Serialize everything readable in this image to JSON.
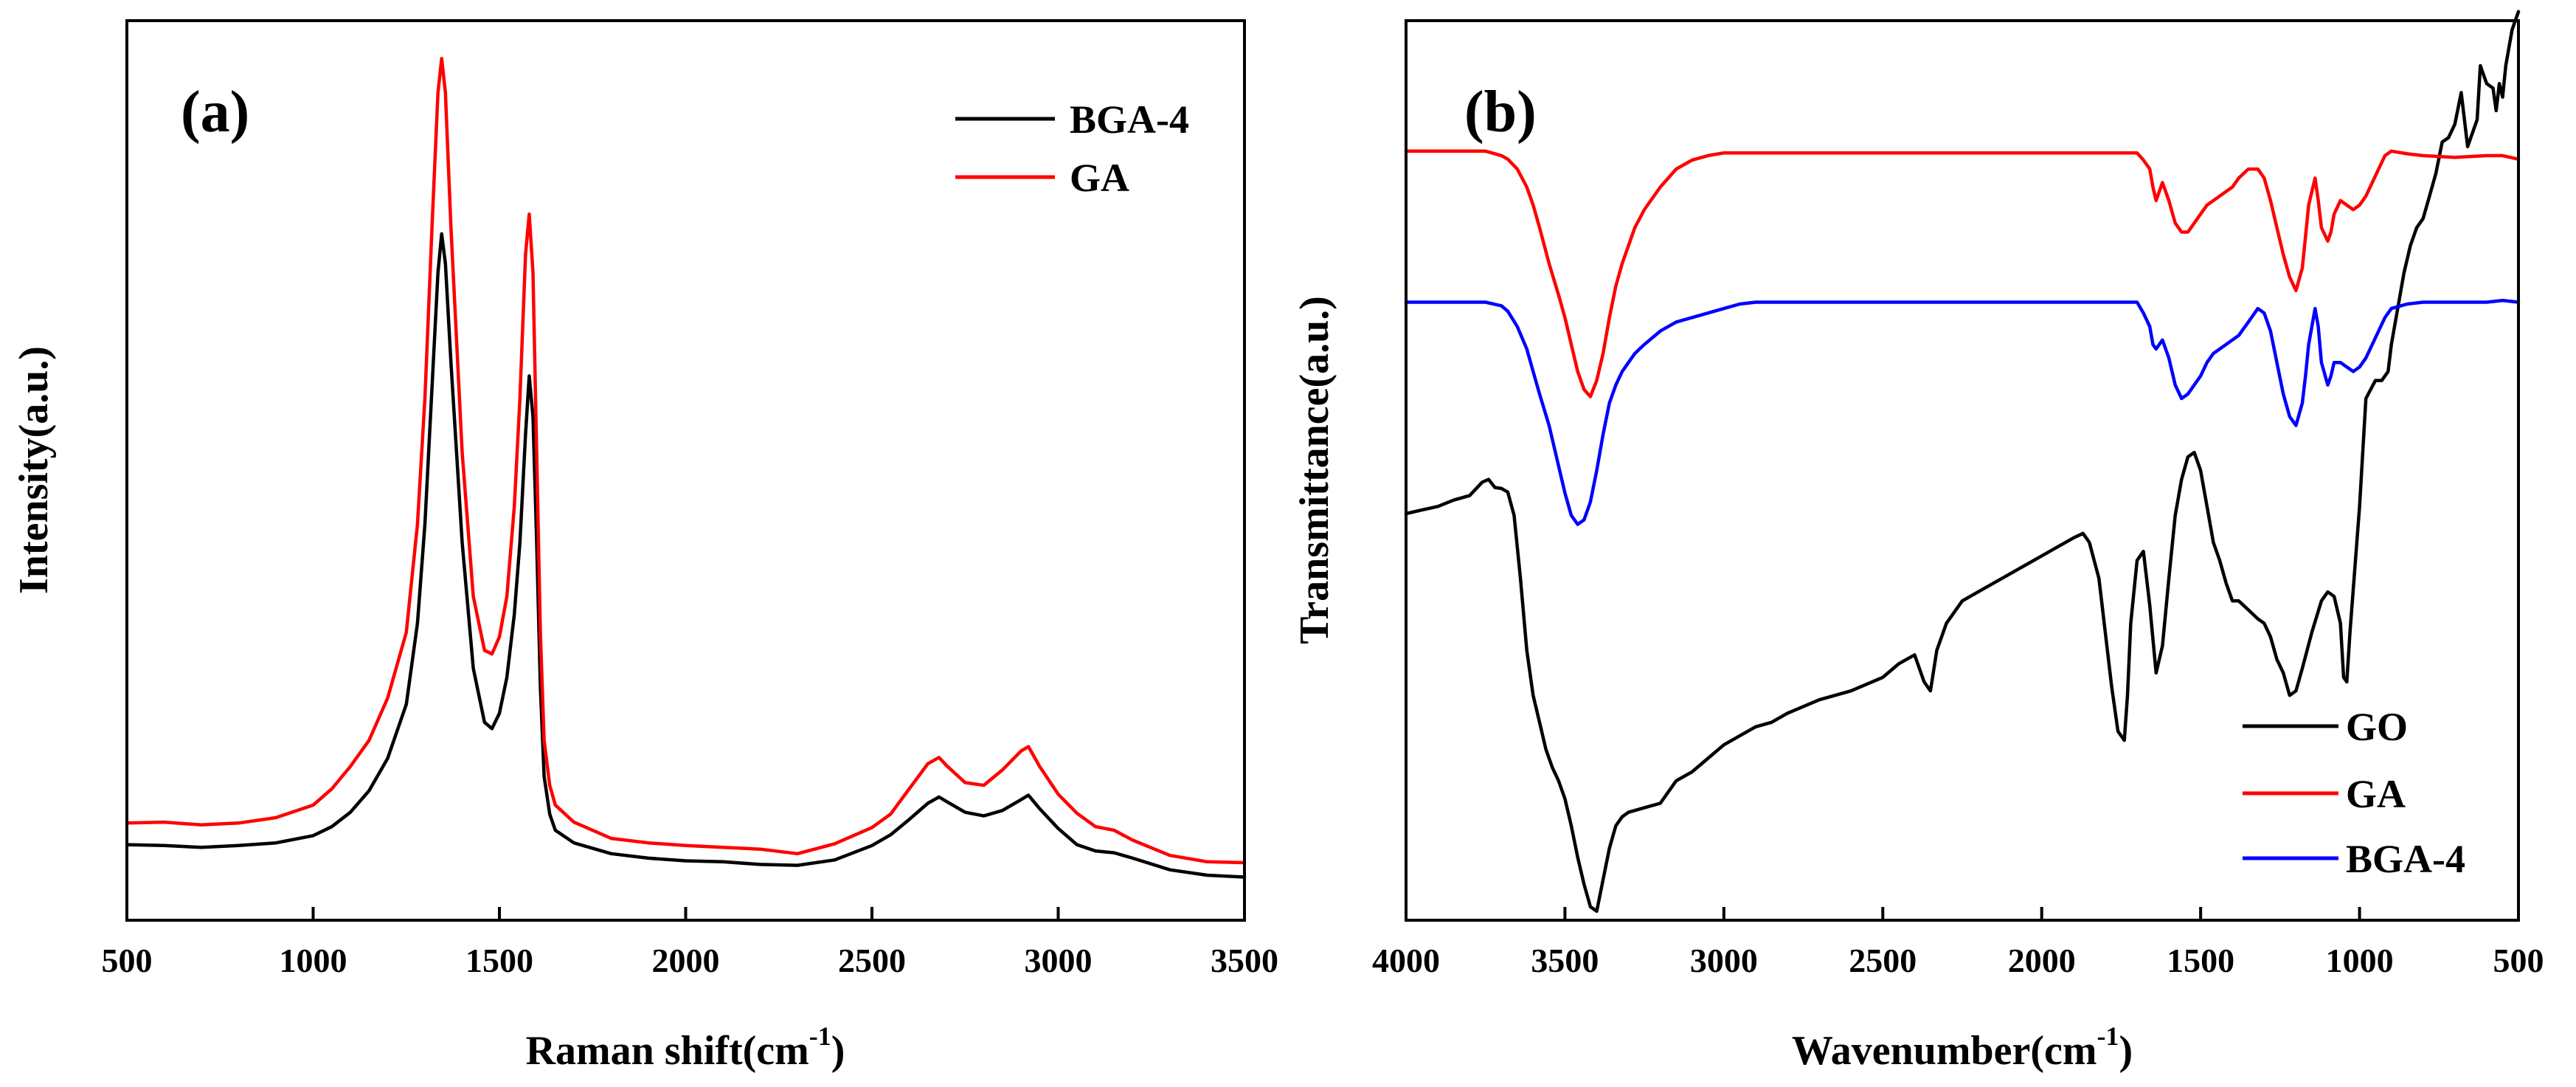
{
  "chart_data": [
    {
      "type": "line",
      "panel_label": "(a)",
      "title": "",
      "xlabel": "Raman shift(cm",
      "xlabel_sup": "-1",
      "xlabel_close": ")",
      "ylabel": "Intensity(a.u.)",
      "xlim": [
        500,
        3500
      ],
      "ylim": [
        0,
        100
      ],
      "xticks": [
        500,
        1000,
        1500,
        2000,
        2500,
        3000,
        3500
      ],
      "yticks_shown": false,
      "legend_position": "top-right",
      "series": [
        {
          "name": "BGA-4",
          "color": "#000000",
          "x": [
            500,
            600,
            700,
            800,
            900,
            1000,
            1050,
            1100,
            1150,
            1200,
            1250,
            1280,
            1300,
            1320,
            1335,
            1345,
            1355,
            1370,
            1400,
            1430,
            1460,
            1480,
            1500,
            1520,
            1540,
            1555,
            1570,
            1580,
            1590,
            1600,
            1610,
            1620,
            1635,
            1650,
            1700,
            1800,
            1900,
            2000,
            2100,
            2200,
            2300,
            2400,
            2500,
            2550,
            2600,
            2650,
            2680,
            2700,
            2750,
            2800,
            2850,
            2900,
            2920,
            2950,
            3000,
            3050,
            3100,
            3150,
            3200,
            3300,
            3400,
            3500
          ],
          "values": [
            8.4,
            8.3,
            8.1,
            8.3,
            8.6,
            9.4,
            10.4,
            12.0,
            14.4,
            18.0,
            24.0,
            33.0,
            44.0,
            60.0,
            72.0,
            76.3,
            73.0,
            62.0,
            42.0,
            28.0,
            22.0,
            21.3,
            23.0,
            27.0,
            34.0,
            42.0,
            54.0,
            60.5,
            56.0,
            42.0,
            26.0,
            16.0,
            11.8,
            10.0,
            8.6,
            7.4,
            6.9,
            6.6,
            6.5,
            6.2,
            6.1,
            6.7,
            8.3,
            9.5,
            11.2,
            13.0,
            13.7,
            13.2,
            12.0,
            11.6,
            12.2,
            13.4,
            13.9,
            12.4,
            10.2,
            8.4,
            7.7,
            7.5,
            6.9,
            5.6,
            5.0,
            4.8
          ]
        },
        {
          "name": "GA",
          "color": "#ff0000",
          "x": [
            500,
            600,
            700,
            800,
            900,
            1000,
            1050,
            1100,
            1150,
            1200,
            1250,
            1280,
            1300,
            1320,
            1335,
            1345,
            1355,
            1370,
            1400,
            1430,
            1460,
            1480,
            1500,
            1520,
            1540,
            1555,
            1570,
            1580,
            1590,
            1600,
            1610,
            1620,
            1635,
            1650,
            1700,
            1800,
            1900,
            2000,
            2100,
            2200,
            2300,
            2400,
            2500,
            2550,
            2600,
            2650,
            2680,
            2700,
            2750,
            2800,
            2850,
            2900,
            2920,
            2950,
            3000,
            3050,
            3100,
            3150,
            3200,
            3300,
            3400,
            3500
          ],
          "values": [
            10.8,
            10.9,
            10.6,
            10.8,
            11.4,
            12.8,
            14.6,
            17.1,
            20.0,
            24.7,
            32.0,
            44.0,
            58.0,
            78.0,
            92.0,
            95.8,
            92.0,
            77.0,
            52.0,
            36.0,
            30.0,
            29.6,
            31.5,
            36.0,
            46.0,
            58.0,
            74.0,
            78.5,
            72.0,
            52.0,
            32.0,
            20.0,
            15.0,
            12.8,
            10.9,
            9.1,
            8.6,
            8.3,
            8.1,
            7.9,
            7.4,
            8.5,
            10.3,
            11.8,
            14.6,
            17.4,
            18.1,
            17.2,
            15.3,
            15.0,
            16.7,
            18.8,
            19.3,
            17.1,
            14.0,
            11.9,
            10.4,
            10.0,
            8.9,
            7.2,
            6.5,
            6.4
          ]
        }
      ]
    },
    {
      "type": "line",
      "panel_label": "(b)",
      "title": "",
      "xlabel": "Wavenumber(cm",
      "xlabel_sup": "-1",
      "xlabel_close": ")",
      "ylabel": "Transmittance(a.u.)",
      "xlim": [
        4000,
        500
      ],
      "ylim": [
        0,
        100
      ],
      "x_reversed": true,
      "xticks": [
        4000,
        3500,
        3000,
        2500,
        2000,
        1500,
        1000,
        500
      ],
      "yticks_shown": false,
      "legend_position": "bottom-right",
      "series": [
        {
          "name": "GO",
          "color": "#000000",
          "x": [
            4000,
            3950,
            3900,
            3850,
            3800,
            3760,
            3740,
            3720,
            3700,
            3680,
            3660,
            3640,
            3620,
            3600,
            3580,
            3560,
            3540,
            3520,
            3500,
            3480,
            3460,
            3440,
            3420,
            3400,
            3380,
            3360,
            3340,
            3320,
            3300,
            3250,
            3200,
            3150,
            3100,
            3050,
            3000,
            2950,
            2900,
            2850,
            2800,
            2700,
            2600,
            2500,
            2450,
            2400,
            2370,
            2350,
            2330,
            2300,
            2250,
            2200,
            2100,
            2000,
            1900,
            1870,
            1850,
            1820,
            1800,
            1780,
            1760,
            1740,
            1730,
            1720,
            1700,
            1680,
            1660,
            1640,
            1620,
            1600,
            1580,
            1560,
            1540,
            1520,
            1510,
            1500,
            1480,
            1460,
            1440,
            1420,
            1400,
            1380,
            1350,
            1320,
            1300,
            1280,
            1260,
            1240,
            1220,
            1200,
            1180,
            1150,
            1120,
            1100,
            1080,
            1060,
            1050,
            1040,
            1030,
            1000,
            980,
            950,
            930,
            910,
            900,
            880,
            860,
            840,
            820,
            800,
            780,
            760,
            740,
            720,
            700,
            680,
            660,
            640,
            630,
            620,
            600,
            580,
            570,
            560,
            550,
            540,
            520,
            500
          ],
          "values": [
            45.2,
            45.6,
            46.0,
            46.7,
            47.2,
            48.7,
            49.0,
            48.1,
            48.0,
            47.6,
            45.0,
            38.0,
            30.0,
            25.0,
            22.0,
            19.0,
            17.0,
            15.5,
            13.5,
            10.5,
            7.0,
            4.0,
            1.5,
            1.0,
            4.5,
            8.0,
            10.5,
            11.5,
            12.0,
            12.5,
            13.0,
            15.5,
            16.5,
            18.0,
            19.5,
            20.5,
            21.5,
            22.0,
            23.0,
            24.5,
            25.5,
            27.0,
            28.5,
            29.5,
            26.5,
            25.5,
            30.0,
            33.0,
            35.5,
            36.5,
            38.5,
            40.5,
            42.5,
            43.0,
            42.0,
            38.0,
            32.0,
            26.0,
            21.0,
            20.0,
            25.0,
            33.0,
            40.0,
            41.0,
            35.0,
            27.5,
            30.5,
            38.0,
            45.0,
            49.0,
            51.5,
            52.0,
            51.0,
            50.0,
            46.0,
            42.0,
            40.0,
            37.5,
            35.5,
            35.5,
            34.5,
            33.5,
            33.0,
            31.5,
            29.0,
            27.5,
            25.0,
            25.5,
            28.0,
            32.0,
            35.5,
            36.5,
            36.0,
            33.0,
            27.0,
            26.5,
            32.0,
            46.0,
            58.0,
            60.0,
            60.0,
            61.0,
            64.0,
            68.0,
            72.0,
            75.0,
            77.0,
            78.0,
            80.5,
            83.0,
            86.5,
            87.0,
            88.5,
            92.0,
            86.0,
            88.0,
            89.0,
            95.0,
            93.0,
            92.5,
            90.0,
            93.0,
            91.5,
            95.0,
            99.0,
            101.0
          ]
        },
        {
          "name": "GA",
          "color": "#ff0000",
          "x": [
            4000,
            3900,
            3800,
            3750,
            3700,
            3680,
            3650,
            3620,
            3600,
            3580,
            3550,
            3520,
            3500,
            3480,
            3460,
            3440,
            3420,
            3400,
            3380,
            3360,
            3340,
            3320,
            3300,
            3280,
            3250,
            3200,
            3150,
            3100,
            3050,
            3000,
            2500,
            2000,
            1700,
            1680,
            1660,
            1650,
            1640,
            1620,
            1600,
            1580,
            1560,
            1540,
            1520,
            1500,
            1480,
            1460,
            1440,
            1420,
            1400,
            1380,
            1350,
            1320,
            1300,
            1280,
            1260,
            1240,
            1220,
            1200,
            1180,
            1170,
            1160,
            1140,
            1130,
            1120,
            1100,
            1090,
            1080,
            1060,
            1040,
            1020,
            1000,
            980,
            960,
            940,
            920,
            900,
            850,
            800,
            700,
            600,
            550,
            500
          ],
          "values": [
            85.5,
            85.5,
            85.5,
            85.5,
            85.0,
            84.6,
            83.5,
            81.5,
            79.5,
            77.0,
            73.0,
            69.5,
            67.0,
            64.0,
            61.0,
            59.0,
            58.2,
            60.0,
            63.0,
            67.0,
            70.5,
            73.0,
            75.0,
            77.0,
            79.0,
            81.5,
            83.5,
            84.5,
            85.0,
            85.3,
            85.3,
            85.3,
            85.3,
            84.5,
            83.5,
            81.5,
            80.0,
            82.0,
            80.0,
            77.5,
            76.5,
            76.5,
            77.5,
            78.5,
            79.5,
            80.0,
            80.5,
            81.0,
            81.5,
            82.5,
            83.5,
            83.5,
            82.5,
            80.0,
            77.0,
            74.0,
            71.5,
            70.0,
            72.5,
            76.0,
            79.5,
            82.5,
            80.0,
            77.0,
            75.5,
            76.5,
            78.5,
            80.0,
            79.5,
            79.0,
            79.5,
            80.5,
            82.0,
            83.5,
            85.0,
            85.5,
            85.2,
            85.0,
            84.8,
            85.0,
            85.0,
            84.6
          ]
        },
        {
          "name": "BGA-4",
          "color": "#0000ff",
          "x": [
            4000,
            3900,
            3800,
            3750,
            3700,
            3680,
            3650,
            3620,
            3600,
            3580,
            3550,
            3520,
            3500,
            3480,
            3460,
            3440,
            3420,
            3400,
            3380,
            3360,
            3340,
            3320,
            3300,
            3280,
            3250,
            3200,
            3150,
            3100,
            3050,
            3000,
            2950,
            2900,
            2500,
            2000,
            1700,
            1680,
            1660,
            1650,
            1640,
            1620,
            1600,
            1580,
            1560,
            1540,
            1520,
            1500,
            1480,
            1460,
            1440,
            1420,
            1400,
            1380,
            1350,
            1320,
            1300,
            1280,
            1260,
            1240,
            1220,
            1200,
            1180,
            1170,
            1160,
            1140,
            1130,
            1120,
            1100,
            1090,
            1080,
            1060,
            1040,
            1020,
            1000,
            980,
            960,
            940,
            920,
            900,
            850,
            800,
            700,
            600,
            550,
            500
          ],
          "values": [
            68.7,
            68.7,
            68.7,
            68.7,
            68.3,
            67.7,
            66.0,
            63.5,
            61.0,
            58.5,
            55.0,
            50.5,
            47.5,
            45.0,
            44.0,
            44.5,
            46.5,
            50.0,
            54.0,
            57.5,
            59.5,
            61.0,
            62.0,
            63.0,
            64.0,
            65.5,
            66.5,
            67.0,
            67.5,
            68.0,
            68.5,
            68.7,
            68.7,
            68.7,
            68.7,
            67.5,
            66.0,
            64.0,
            63.5,
            64.5,
            62.5,
            59.5,
            58.0,
            58.5,
            59.5,
            60.5,
            62.0,
            63.0,
            63.5,
            64.0,
            64.5,
            65.0,
            66.5,
            68.0,
            67.5,
            65.5,
            62.0,
            58.5,
            56.0,
            55.0,
            57.5,
            60.5,
            64.0,
            68.0,
            66.0,
            62.0,
            59.5,
            60.5,
            62.0,
            62.0,
            61.5,
            61.0,
            61.5,
            62.5,
            64.0,
            65.5,
            67.0,
            68.0,
            68.5,
            68.7,
            68.7,
            68.7,
            68.9,
            68.7
          ]
        }
      ]
    }
  ]
}
